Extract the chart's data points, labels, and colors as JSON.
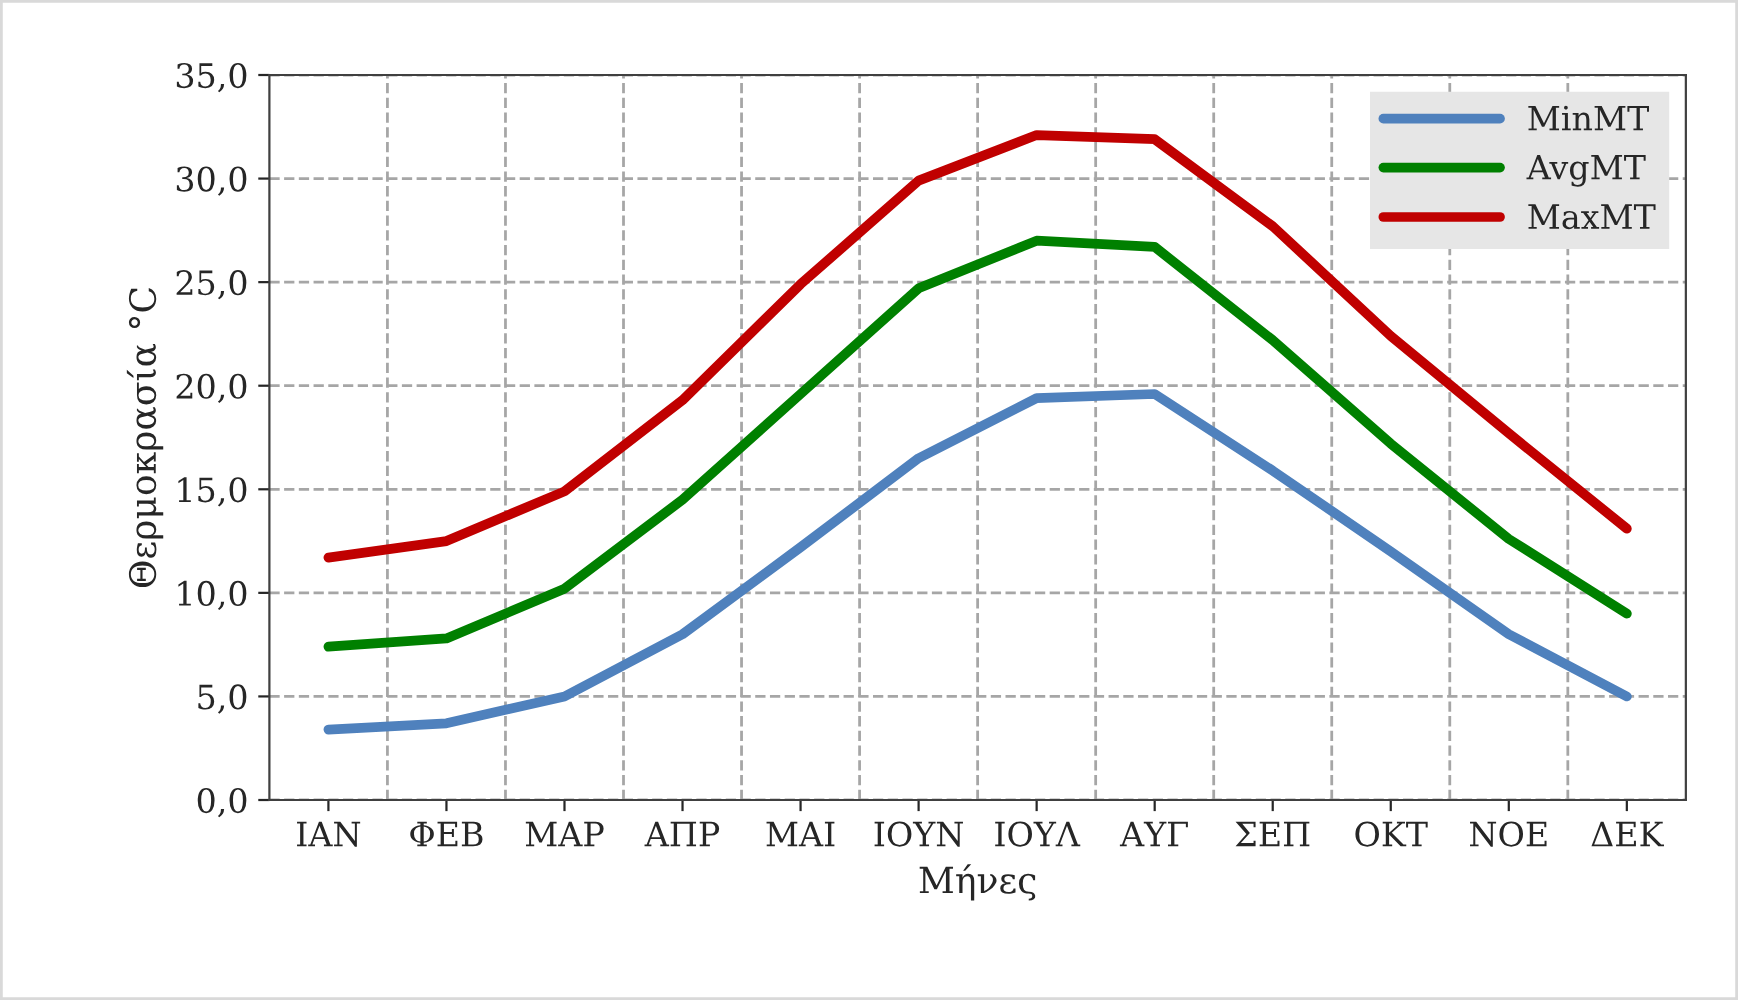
{
  "chart_data": {
    "type": "line",
    "xlabel": "Μήνες",
    "ylabel": "Θερμοκρασία °C",
    "categories": [
      "ΙΑΝ",
      "ΦΕΒ",
      "ΜΑΡ",
      "ΑΠΡ",
      "ΜΑΙ",
      "ΙΟΥΝ",
      "ΙΟΥΛ",
      "ΑΥΓ",
      "ΣΕΠ",
      "ΟΚΤ",
      "ΝΟΕ",
      "ΔΕΚ"
    ],
    "series": [
      {
        "name": "MinMT",
        "color": "#4f81bd",
        "values": [
          3.4,
          3.7,
          5.0,
          8.0,
          12.2,
          16.5,
          19.4,
          19.6,
          15.9,
          12.0,
          8.0,
          5.0
        ]
      },
      {
        "name": "AvgMT",
        "color": "#008000",
        "values": [
          7.4,
          7.8,
          10.2,
          14.5,
          19.6,
          24.7,
          27.0,
          26.7,
          22.2,
          17.2,
          12.6,
          9.0
        ]
      },
      {
        "name": "MaxMT",
        "color": "#c00000",
        "values": [
          11.7,
          12.5,
          14.9,
          19.3,
          24.9,
          29.9,
          32.1,
          31.9,
          27.7,
          22.4,
          17.7,
          13.1
        ]
      }
    ],
    "ylim": [
      0,
      35
    ],
    "yticks": [
      {
        "value": 0,
        "label": "0,0"
      },
      {
        "value": 5,
        "label": "5,0"
      },
      {
        "value": 10,
        "label": "10,0"
      },
      {
        "value": 15,
        "label": "15,0"
      },
      {
        "value": 20,
        "label": "20,0"
      },
      {
        "value": 25,
        "label": "25,0"
      },
      {
        "value": 30,
        "label": "30,0"
      },
      {
        "value": 35,
        "label": "35,0"
      }
    ],
    "grid": true,
    "legend": "top right",
    "marker": "none",
    "line_style": "solid"
  }
}
